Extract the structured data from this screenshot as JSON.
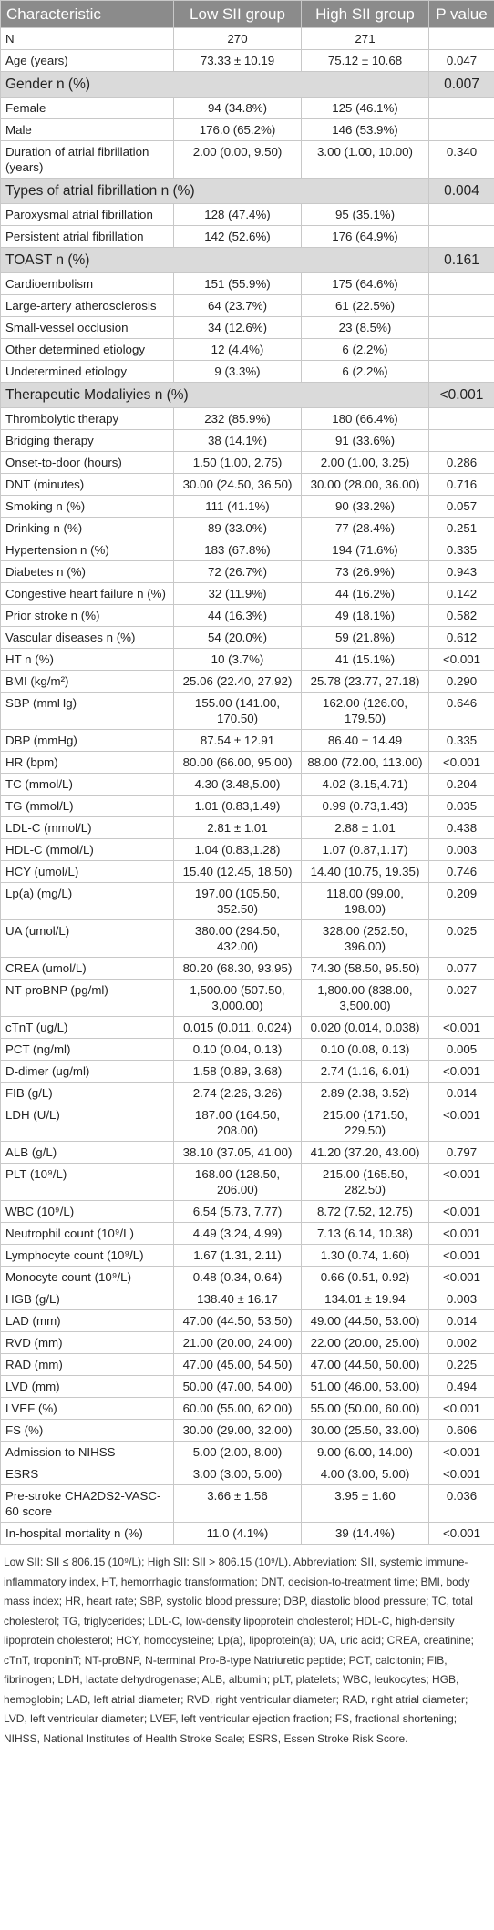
{
  "header": [
    "Characteristic",
    "Low SII group",
    "High SII group",
    "P value"
  ],
  "rows": [
    {
      "label": "N",
      "low": "270",
      "high": "271"
    },
    {
      "label": "Age (years)",
      "low": "73.33 ± 10.19",
      "high": "75.12 ± 10.68",
      "p": "0.047"
    },
    {
      "heading": "Gender n (%)",
      "p": "0.007"
    },
    {
      "label": "Female",
      "low": "94 (34.8%)",
      "high": "125 (46.1%)"
    },
    {
      "label": "Male",
      "low": "176.0 (65.2%)",
      "high": "146 (53.9%)"
    },
    {
      "label": "Duration of atrial fibrillation (years)",
      "low": "2.00 (0.00, 9.50)",
      "high": "3.00 (1.00, 10.00)",
      "p": "0.340"
    },
    {
      "heading": "Types of atrial fibrillation n (%)",
      "p": "0.004"
    },
    {
      "label": "Paroxysmal atrial fibrillation",
      "low": "128 (47.4%)",
      "high": "95 (35.1%)"
    },
    {
      "label": "Persistent atrial fibrillation",
      "low": "142 (52.6%)",
      "high": "176 (64.9%)"
    },
    {
      "heading": "TOAST n (%)",
      "p": "0.161"
    },
    {
      "label": "Cardioembolism",
      "low": "151 (55.9%)",
      "high": "175 (64.6%)"
    },
    {
      "label": "Large-artery atherosclerosis",
      "low": "64 (23.7%)",
      "high": "61 (22.5%)"
    },
    {
      "label": "Small-vessel occlusion",
      "low": "34 (12.6%)",
      "high": "23 (8.5%)"
    },
    {
      "label": "Other determined etiology",
      "low": "12 (4.4%)",
      "high": "6 (2.2%)"
    },
    {
      "label": "Undetermined etiology",
      "low": "9 (3.3%)",
      "high": "6 (2.2%)"
    },
    {
      "heading": "Therapeutic Modaliyies n (%)",
      "p": "<0.001"
    },
    {
      "label": "Thrombolytic therapy",
      "low": "232 (85.9%)",
      "high": "180 (66.4%)"
    },
    {
      "label": "Bridging therapy",
      "low": "38 (14.1%)",
      "high": "91 (33.6%)"
    },
    {
      "label": "Onset-to-door (hours)",
      "low": "1.50 (1.00, 2.75)",
      "high": "2.00 (1.00, 3.25)",
      "p": "0.286"
    },
    {
      "label": "DNT (minutes)",
      "low": "30.00 (24.50, 36.50)",
      "high": "30.00 (28.00, 36.00)",
      "p": "0.716"
    },
    {
      "label": "Smoking n (%)",
      "low": "111 (41.1%)",
      "high": "90 (33.2%)",
      "p": "0.057"
    },
    {
      "label": "Drinking n (%)",
      "low": "89 (33.0%)",
      "high": "77 (28.4%)",
      "p": "0.251"
    },
    {
      "label": "Hypertension n (%)",
      "low": "183 (67.8%)",
      "high": "194 (71.6%)",
      "p": "0.335"
    },
    {
      "label": "Diabetes n (%)",
      "low": "72 (26.7%)",
      "high": "73 (26.9%)",
      "p": "0.943"
    },
    {
      "label": "Congestive heart failure n (%)",
      "low": "32 (11.9%)",
      "high": "44 (16.2%)",
      "p": "0.142"
    },
    {
      "label": "Prior stroke n (%)",
      "low": "44 (16.3%)",
      "high": "49 (18.1%)",
      "p": "0.582"
    },
    {
      "label": "Vascular diseases n (%)",
      "low": "54 (20.0%)",
      "high": "59 (21.8%)",
      "p": "0.612"
    },
    {
      "label": "HT n (%)",
      "low": "10 (3.7%)",
      "high": "41 (15.1%)",
      "p": "<0.001"
    },
    {
      "label": "BMI (kg/m²)",
      "low": "25.06 (22.40, 27.92)",
      "high": "25.78 (23.77, 27.18)",
      "p": "0.290"
    },
    {
      "label": "SBP (mmHg)",
      "low": "155.00 (141.00, 170.50)",
      "high": "162.00 (126.00, 179.50)",
      "p": "0.646"
    },
    {
      "label": "DBP (mmHg)",
      "low": "87.54 ± 12.91",
      "high": "86.40 ± 14.49",
      "p": "0.335"
    },
    {
      "label": "HR (bpm)",
      "low": "80.00 (66.00, 95.00)",
      "high": "88.00 (72.00, 113.00)",
      "p": "<0.001"
    },
    {
      "label": "TC (mmol/L)",
      "low": "4.30 (3.48,5.00)",
      "high": "4.02 (3.15,4.71)",
      "p": "0.204"
    },
    {
      "label": "TG (mmol/L)",
      "low": "1.01 (0.83,1.49)",
      "high": "0.99 (0.73,1.43)",
      "p": "0.035"
    },
    {
      "label": "LDL-C (mmol/L)",
      "low": "2.81 ± 1.01",
      "high": "2.88 ± 1.01",
      "p": "0.438"
    },
    {
      "label": "HDL-C (mmol/L)",
      "low": "1.04 (0.83,1.28)",
      "high": "1.07 (0.87,1.17)",
      "p": "0.003"
    },
    {
      "label": "HCY (umol/L)",
      "low": "15.40 (12.45, 18.50)",
      "high": "14.40 (10.75, 19.35)",
      "p": "0.746"
    },
    {
      "label": "Lp(a) (mg/L)",
      "low": "197.00 (105.50, 352.50)",
      "high": "118.00 (99.00, 198.00)",
      "p": "0.209"
    },
    {
      "label": "UA (umol/L)",
      "low": "380.00 (294.50, 432.00)",
      "high": "328.00 (252.50, 396.00)",
      "p": "0.025"
    },
    {
      "label": "CREA (umol/L)",
      "low": "80.20 (68.30, 93.95)",
      "high": "74.30 (58.50, 95.50)",
      "p": "0.077"
    },
    {
      "label": "NT-proBNP (pg/ml)",
      "low": "1,500.00 (507.50, 3,000.00)",
      "high": "1,800.00 (838.00, 3,500.00)",
      "p": "0.027"
    },
    {
      "label": "cTnT (ug/L)",
      "low": "0.015 (0.011, 0.024)",
      "high": "0.020 (0.014, 0.038)",
      "p": "<0.001"
    },
    {
      "label": "PCT (ng/ml)",
      "low": "0.10 (0.04, 0.13)",
      "high": "0.10 (0.08, 0.13)",
      "p": "0.005"
    },
    {
      "label": "D-dimer (ug/ml)",
      "low": "1.58 (0.89, 3.68)",
      "high": "2.74 (1.16, 6.01)",
      "p": "<0.001"
    },
    {
      "label": "FIB (g/L)",
      "low": "2.74 (2.26, 3.26)",
      "high": "2.89 (2.38, 3.52)",
      "p": "0.014"
    },
    {
      "label": "LDH (U/L)",
      "low": "187.00 (164.50, 208.00)",
      "high": "215.00 (171.50, 229.50)",
      "p": "<0.001"
    },
    {
      "label": "ALB (g/L)",
      "low": "38.10 (37.05, 41.00)",
      "high": "41.20 (37.20, 43.00)",
      "p": "0.797"
    },
    {
      "label": "PLT (10⁹/L)",
      "low": "168.00 (128.50, 206.00)",
      "high": "215.00 (165.50, 282.50)",
      "p": "<0.001"
    },
    {
      "label": "WBC (10⁹/L)",
      "low": "6.54 (5.73, 7.77)",
      "high": "8.72 (7.52, 12.75)",
      "p": "<0.001"
    },
    {
      "label": "Neutrophil count (10⁹/L)",
      "low": "4.49 (3.24, 4.99)",
      "high": "7.13 (6.14, 10.38)",
      "p": "<0.001"
    },
    {
      "label": "Lymphocyte count (10⁹/L)",
      "low": "1.67 (1.31, 2.11)",
      "high": "1.30 (0.74, 1.60)",
      "p": "<0.001"
    },
    {
      "label": "Monocyte count (10⁹/L)",
      "low": "0.48 (0.34, 0.64)",
      "high": "0.66 (0.51, 0.92)",
      "p": "<0.001"
    },
    {
      "label": "HGB (g/L)",
      "low": "138.40 ± 16.17",
      "high": "134.01 ± 19.94",
      "p": "0.003"
    },
    {
      "label": "LAD (mm)",
      "low": "47.00 (44.50, 53.50)",
      "high": "49.00 (44.50, 53.00)",
      "p": "0.014"
    },
    {
      "label": "RVD (mm)",
      "low": "21.00 (20.00, 24.00)",
      "high": "22.00 (20.00, 25.00)",
      "p": "0.002"
    },
    {
      "label": "RAD (mm)",
      "low": "47.00 (45.00, 54.50)",
      "high": "47.00 (44.50, 50.00)",
      "p": "0.225"
    },
    {
      "label": "LVD (mm)",
      "low": "50.00 (47.00, 54.00)",
      "high": "51.00 (46.00, 53.00)",
      "p": "0.494"
    },
    {
      "label": "LVEF (%)",
      "low": "60.00 (55.00, 62.00)",
      "high": "55.00 (50.00, 60.00)",
      "p": "<0.001"
    },
    {
      "label": "FS (%)",
      "low": "30.00 (29.00, 32.00)",
      "high": "30.00 (25.50, 33.00)",
      "p": "0.606"
    },
    {
      "label": "Admission to NIHSS",
      "low": "5.00 (2.00, 8.00)",
      "high": "9.00 (6.00, 14.00)",
      "p": "<0.001"
    },
    {
      "label": "ESRS",
      "low": "3.00 (3.00, 5.00)",
      "high": "4.00 (3.00, 5.00)",
      "p": "<0.001"
    },
    {
      "label": "Pre-stroke CHA2DS2-VASC-60 score",
      "low": "3.66 ± 1.56",
      "high": "3.95 ± 1.60",
      "p": "0.036"
    },
    {
      "label": "In-hospital mortality n (%)",
      "low": "11.0 (4.1%)",
      "high": "39 (14.4%)",
      "p": "<0.001"
    }
  ],
  "footnote": "Low SII: SII ≤ 806.15 (10⁹/L); High SII: SII > 806.15 (10⁹/L). Abbreviation: SII, systemic immune-inflammatory index, HT, hemorrhagic transformation; DNT, decision-to-treatment time; BMI, body mass index; HR, heart rate; SBP, systolic blood pressure; DBP, diastolic blood pressure; TC, total cholesterol; TG, triglycerides; LDL-C, low-density lipoprotein cholesterol; HDL-C, high-density lipoprotein cholesterol; HCY, homocysteine; Lp(a), lipoprotein(a); UA, uric acid; CREA, creatinine; cTnT, troponinT; NT-proBNP, N-terminal Pro-B-type Natriuretic peptide; PCT, calcitonin; FIB, fibrinogen; LDH, lactate dehydrogenase; ALB, albumin; pLT, platelets; WBC, leukocytes; HGB, hemoglobin; LAD, left atrial diameter; RVD, right ventricular diameter; RAD, right atrial diameter; LVD, left ventricular diameter; LVEF, left ventricular ejection fraction; FS, fractional shortening; NIHSS, National Institutes of Health Stroke Scale; ESRS, Essen Stroke Risk Score."
}
